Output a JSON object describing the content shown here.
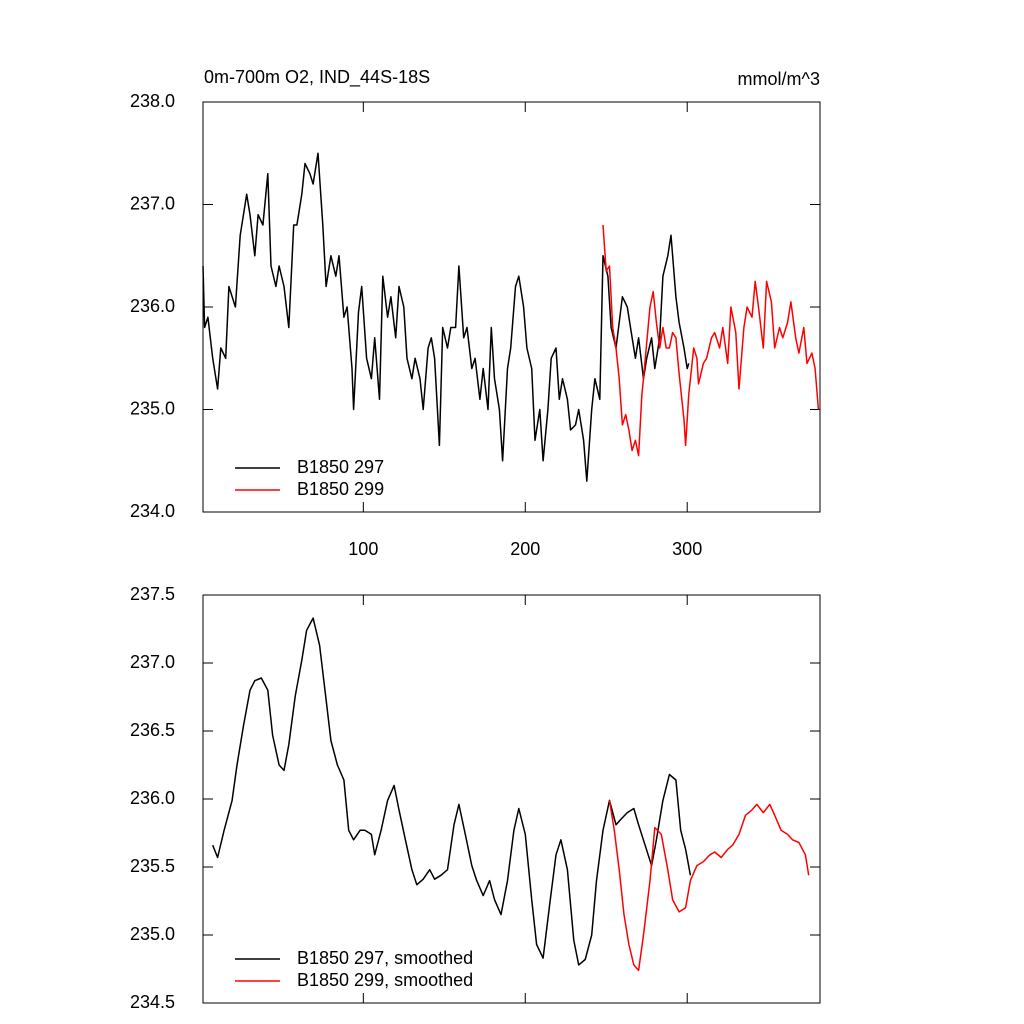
{
  "chart_data": [
    {
      "type": "line",
      "title": "0m-700m O2, IND_44S-18S",
      "right_title": "mmol/m^3",
      "xlim": [
        1,
        382
      ],
      "xticks": [
        100,
        200,
        300
      ],
      "show_xtick_labels": true,
      "ylim": [
        234,
        238
      ],
      "yticks": [
        {
          "value": 234,
          "label": "234.0"
        },
        {
          "value": 235,
          "label": "235.0"
        },
        {
          "value": 236,
          "label": "236.0"
        },
        {
          "value": 237,
          "label": "237.0"
        },
        {
          "value": 238,
          "label": "238.0"
        }
      ],
      "legend": "lower left",
      "series": [
        {
          "name": "B1850 297",
          "color": "#000000",
          "x": [
            1,
            2,
            4,
            7,
            10,
            12,
            15,
            17,
            21,
            24,
            28,
            30,
            33,
            35,
            38,
            41,
            43,
            46,
            48,
            51,
            54,
            57,
            59,
            62,
            64,
            67,
            69,
            72,
            75,
            77,
            80,
            83,
            85,
            88,
            90,
            93,
            94,
            97,
            99,
            102,
            105,
            107,
            110,
            112,
            115,
            117,
            120,
            122,
            125,
            127,
            130,
            132,
            135,
            137,
            140,
            142,
            144,
            147,
            149,
            152,
            154,
            157,
            159,
            162,
            164,
            167,
            169,
            172,
            174,
            177,
            179,
            181,
            184,
            186,
            189,
            191,
            194,
            196,
            199,
            201,
            204,
            206,
            209,
            211,
            214,
            216,
            219,
            221,
            223,
            226,
            228,
            231,
            233,
            236,
            238,
            241,
            243,
            246,
            248,
            251,
            253,
            256,
            258,
            260,
            263,
            265,
            268,
            270,
            273,
            275,
            278,
            280,
            283,
            285,
            288,
            290,
            293,
            295,
            298,
            300,
            301
          ],
          "values": [
            236.4,
            235.8,
            235.9,
            235.5,
            235.2,
            235.6,
            235.5,
            236.2,
            236.0,
            236.7,
            237.1,
            236.9,
            236.5,
            236.9,
            236.8,
            237.3,
            236.4,
            236.2,
            236.4,
            236.2,
            235.8,
            236.8,
            236.8,
            237.1,
            237.4,
            237.3,
            237.2,
            237.5,
            236.8,
            236.2,
            236.5,
            236.3,
            236.5,
            235.9,
            236.0,
            235.4,
            235.0,
            235.95,
            236.2,
            235.5,
            235.3,
            235.7,
            235.1,
            236.3,
            235.9,
            236.1,
            235.7,
            236.2,
            236.0,
            235.5,
            235.3,
            235.5,
            235.3,
            235.0,
            235.6,
            235.7,
            235.5,
            234.65,
            235.8,
            235.6,
            235.8,
            235.8,
            236.4,
            235.7,
            235.8,
            235.4,
            235.5,
            235.1,
            235.4,
            235.0,
            235.8,
            235.3,
            235.0,
            234.5,
            235.4,
            235.6,
            236.2,
            236.3,
            236.0,
            235.6,
            235.4,
            234.7,
            235.0,
            234.5,
            235.0,
            235.5,
            235.6,
            235.1,
            235.3,
            235.1,
            234.8,
            234.85,
            235.0,
            234.7,
            234.3,
            235.0,
            235.3,
            235.1,
            236.5,
            236.3,
            235.8,
            235.6,
            235.85,
            236.1,
            236.0,
            235.8,
            235.5,
            235.7,
            235.3,
            235.5,
            235.7,
            235.4,
            235.7,
            236.3,
            236.5,
            236.7,
            236.1,
            235.85,
            235.6,
            235.4,
            235.45
          ]
        },
        {
          "name": "B1850 299",
          "color": "#ff0000",
          "x": [
            248,
            250,
            252,
            254,
            256,
            258,
            260,
            262,
            264,
            266,
            268,
            270,
            272,
            273,
            275,
            277,
            279,
            281,
            283,
            285,
            287,
            289,
            291,
            293,
            295,
            298,
            299,
            301,
            304,
            306,
            307,
            310,
            312,
            315,
            317,
            320,
            322,
            325,
            327,
            330,
            332,
            335,
            337,
            340,
            342,
            344,
            347,
            349,
            352,
            354,
            357,
            359,
            362,
            364,
            367,
            369,
            372,
            374,
            377,
            379,
            381
          ],
          "values": [
            236.8,
            236.35,
            236.4,
            235.8,
            235.6,
            235.3,
            234.85,
            234.95,
            234.8,
            234.6,
            234.7,
            234.55,
            235.15,
            235.3,
            235.65,
            236.0,
            236.15,
            235.85,
            235.6,
            235.8,
            235.6,
            235.6,
            235.75,
            235.7,
            235.35,
            234.9,
            234.65,
            235.15,
            235.6,
            235.5,
            235.25,
            235.45,
            235.5,
            235.7,
            235.75,
            235.6,
            235.8,
            235.45,
            236.0,
            235.75,
            235.2,
            235.8,
            236.0,
            235.9,
            236.25,
            236.0,
            235.6,
            236.25,
            236.05,
            235.6,
            235.8,
            235.7,
            235.85,
            236.05,
            235.7,
            235.55,
            235.8,
            235.45,
            235.55,
            235.4,
            235.0
          ]
        }
      ]
    },
    {
      "type": "line",
      "xlim": [
        1,
        382
      ],
      "xticks": [
        100,
        200,
        300
      ],
      "show_xtick_labels": false,
      "ylim": [
        234.5,
        237.5
      ],
      "yticks": [
        234.5,
        {
          "value": 235,
          "label": "235.0"
        },
        235.5,
        {
          "value": 236,
          "label": "236.0"
        },
        236.5,
        {
          "value": 237,
          "label": "237.0"
        },
        237.5
      ],
      "legend": "lower left",
      "series": [
        {
          "name": "B1850 297, smoothed",
          "color": "#000000",
          "x": [
            7,
            10,
            14,
            19,
            22,
            26,
            30,
            33,
            37,
            41,
            44,
            48,
            51,
            54,
            58,
            62,
            65,
            69,
            73,
            77,
            80,
            84,
            88,
            91,
            94,
            98,
            101,
            105,
            107,
            111,
            115,
            119,
            122,
            126,
            130,
            133,
            137,
            141,
            144,
            148,
            152,
            156,
            159,
            163,
            167,
            170,
            174,
            178,
            181,
            185,
            189,
            193,
            196,
            200,
            204,
            207,
            211,
            215,
            219,
            222,
            226,
            230,
            233,
            237,
            241,
            244,
            248,
            252,
            256,
            259,
            263,
            267,
            270,
            274,
            278,
            281,
            285,
            289,
            293,
            296,
            299,
            302
          ],
          "values": [
            235.66,
            235.57,
            235.77,
            235.99,
            236.25,
            236.54,
            236.8,
            236.87,
            236.89,
            236.8,
            236.47,
            236.25,
            236.21,
            236.4,
            236.76,
            237.02,
            237.24,
            237.33,
            237.13,
            236.73,
            236.43,
            236.25,
            236.14,
            235.77,
            235.7,
            235.77,
            235.77,
            235.74,
            235.59,
            235.77,
            235.99,
            236.1,
            235.92,
            235.7,
            235.48,
            235.37,
            235.41,
            235.48,
            235.41,
            235.44,
            235.48,
            235.81,
            235.96,
            235.74,
            235.51,
            235.4,
            235.29,
            235.4,
            235.26,
            235.15,
            235.4,
            235.77,
            235.93,
            235.74,
            235.26,
            234.93,
            234.83,
            235.22,
            235.59,
            235.7,
            235.48,
            234.96,
            234.78,
            234.82,
            235.0,
            235.4,
            235.77,
            235.99,
            235.81,
            235.85,
            235.9,
            235.93,
            235.81,
            235.66,
            235.51,
            235.7,
            235.99,
            236.18,
            236.14,
            235.77,
            235.63,
            235.44
          ]
        },
        {
          "name": "B1850 299, smoothed",
          "color": "#ff0000",
          "x": [
            252,
            255,
            258,
            261,
            264,
            267,
            270,
            273,
            277,
            280,
            284,
            288,
            291,
            295,
            299,
            302,
            306,
            310,
            314,
            317,
            321,
            325,
            328,
            332,
            336,
            340,
            343,
            347,
            351,
            354,
            358,
            362,
            365,
            369,
            373,
            375
          ],
          "values": [
            235.99,
            235.77,
            235.48,
            235.15,
            234.93,
            234.78,
            234.74,
            235.0,
            235.4,
            235.79,
            235.74,
            235.48,
            235.26,
            235.17,
            235.2,
            235.4,
            235.51,
            235.54,
            235.59,
            235.61,
            235.57,
            235.63,
            235.66,
            235.74,
            235.88,
            235.92,
            235.96,
            235.9,
            235.96,
            235.88,
            235.77,
            235.74,
            235.7,
            235.68,
            235.59,
            235.44
          ]
        }
      ]
    }
  ]
}
